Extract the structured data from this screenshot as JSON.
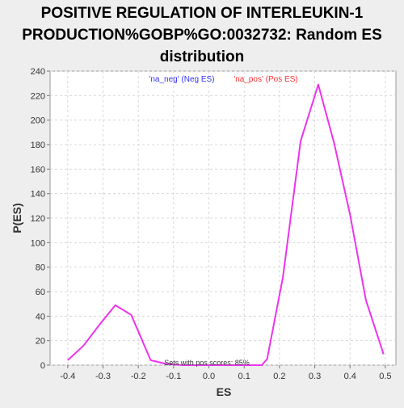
{
  "chart_data": {
    "type": "line",
    "title_lines": [
      "POSITIVE REGULATION OF INTERLEUKIN-1",
      "PRODUCTION%GOBP%GO:0032732: Random ES",
      "distribution"
    ],
    "xlabel": "ES",
    "ylabel": "P(ES)",
    "xlim": [
      -0.45,
      0.53
    ],
    "ylim": [
      0,
      240
    ],
    "x_ticks": [
      -0.4,
      -0.3,
      -0.2,
      -0.1,
      0.0,
      0.1,
      0.2,
      0.3,
      0.4,
      0.5
    ],
    "x_tick_labels": [
      "-0.4",
      "-0.3",
      "-0.2",
      "-0.1",
      "0.0",
      "0.1",
      "0.2",
      "0.3",
      "0.4",
      "0.5"
    ],
    "y_ticks": [
      0,
      20,
      40,
      60,
      80,
      100,
      120,
      140,
      160,
      180,
      200,
      220,
      240
    ],
    "y_tick_labels": [
      "0",
      "20",
      "40",
      "60",
      "80",
      "100",
      "120",
      "140",
      "160",
      "180",
      "200",
      "220",
      "240"
    ],
    "grid": true,
    "legend_position": "top-center",
    "legend": [
      {
        "label": "'na_neg' (Neg ES)",
        "color": "#3333ff"
      },
      {
        "label": "'na_pos' (Pos ES)",
        "color": "#ff3333"
      }
    ],
    "annotation": "Sets with pos scores: 85%",
    "series": [
      {
        "color": "#ee33ee",
        "x": [
          -0.4,
          -0.355,
          -0.31,
          -0.265,
          -0.22,
          -0.165,
          -0.12,
          -0.075,
          -0.03,
          0.015,
          0.06,
          0.105,
          0.15,
          0.165,
          0.21,
          0.26,
          0.31,
          0.355,
          0.4,
          0.445,
          0.495
        ],
        "y": [
          4,
          16,
          33,
          49,
          41,
          4,
          1,
          0,
          0,
          0,
          0,
          0,
          0,
          5,
          72,
          183,
          229,
          181,
          123,
          53,
          9
        ]
      }
    ]
  }
}
